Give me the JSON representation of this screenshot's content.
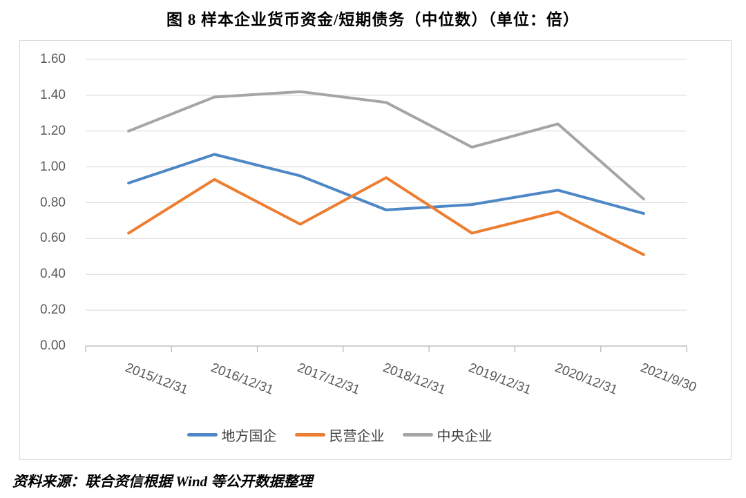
{
  "title": "图 8  样本企业货币资金/短期债务（中位数）（单位：倍）",
  "source_note": "资料来源：联合资信根据 Wind 等公开数据整理",
  "colors": {
    "series_blue": "#4E87C5",
    "series_orange": "#ED7D31",
    "series_gray": "#A5A5A5",
    "gridline": "#D9D9D9",
    "axis": "#BFBFBF",
    "tick_label": "#595959",
    "frame_border": "#D9D9D9"
  },
  "chart_data": {
    "type": "line",
    "title": "图 8  样本企业货币资金/短期债务（中位数）（单位：倍）",
    "categories": [
      "2015/12/31",
      "2016/12/31",
      "2017/12/31",
      "2018/12/31",
      "2019/12/31",
      "2020/12/31",
      "2021/9/30"
    ],
    "series": [
      {
        "name": "地方国企",
        "color": "#4E87C5",
        "values": [
          0.91,
          1.07,
          0.95,
          0.76,
          0.79,
          0.87,
          0.74
        ]
      },
      {
        "name": "民营企业",
        "color": "#ED7D31",
        "values": [
          0.63,
          0.93,
          0.68,
          0.94,
          0.63,
          0.75,
          0.51
        ]
      },
      {
        "name": "中央企业",
        "color": "#A5A5A5",
        "values": [
          1.2,
          1.39,
          1.42,
          1.36,
          1.11,
          1.24,
          0.82
        ]
      }
    ],
    "ylim": [
      0,
      1.6
    ],
    "ytick_step": 0.2,
    "ytick_labels": [
      "0.00",
      "0.20",
      "0.40",
      "0.60",
      "0.80",
      "1.00",
      "1.20",
      "1.40",
      "1.60"
    ],
    "xlabel": "",
    "ylabel": "",
    "unit": "倍",
    "grid": true,
    "legend_position": "bottom",
    "x_tick_label_rotation_deg": 21
  }
}
